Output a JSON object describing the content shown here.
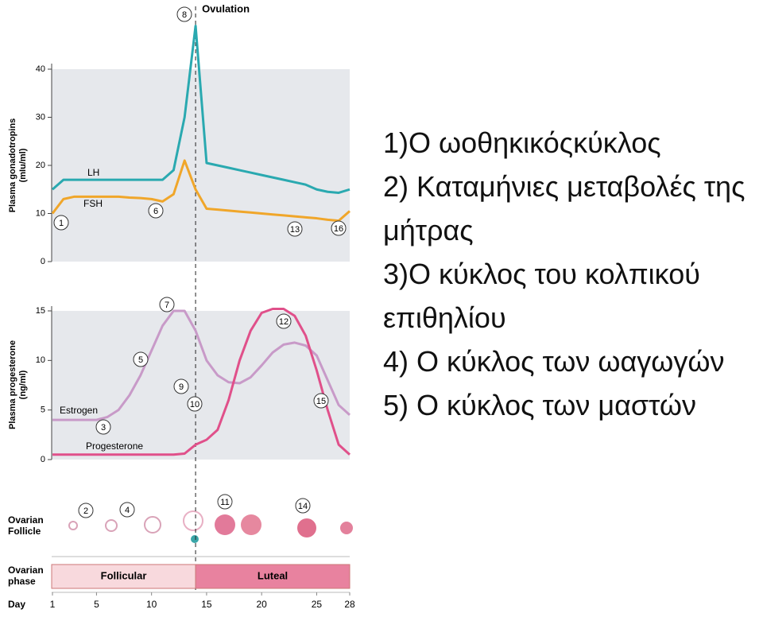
{
  "chart_data": [
    {
      "type": "line",
      "ylabel": [
        "Plasma gonadotropins",
        "(mIu/ml)"
      ],
      "ylim": [
        0,
        40
      ],
      "yticks": [
        0,
        10,
        20,
        30,
        40
      ],
      "x": [
        1,
        2,
        3,
        4,
        5,
        6,
        7,
        8,
        9,
        10,
        11,
        12,
        13,
        14,
        15,
        16,
        17,
        18,
        19,
        20,
        21,
        22,
        23,
        24,
        25,
        26,
        27,
        28
      ],
      "series": [
        {
          "name": "LH",
          "color": "#2aa9b0",
          "values": [
            15,
            17,
            17,
            17,
            17,
            17,
            17,
            17,
            17,
            17,
            17,
            19,
            30,
            49,
            20.5,
            20,
            19.5,
            19,
            18.5,
            18,
            17.5,
            17,
            16.5,
            16,
            15,
            14.5,
            14.3,
            15
          ]
        },
        {
          "name": "FSH",
          "color": "#f0a62a",
          "values": [
            10,
            13,
            13.5,
            13.5,
            13.5,
            13.5,
            13.5,
            13.3,
            13.2,
            13,
            12.5,
            14,
            21,
            15,
            11,
            10.8,
            10.6,
            10.4,
            10.2,
            10,
            9.8,
            9.6,
            9.4,
            9.2,
            9,
            8.7,
            8.5,
            10.5
          ]
        }
      ],
      "annotations": [
        "8",
        "1",
        "6",
        "13",
        "16"
      ]
    },
    {
      "type": "line",
      "ylabel": [
        "Plasma progesterone",
        "(ng/ml)"
      ],
      "ylim": [
        0,
        15
      ],
      "yticks": [
        0,
        5,
        10,
        15
      ],
      "x": [
        1,
        2,
        3,
        4,
        5,
        6,
        7,
        8,
        9,
        10,
        11,
        12,
        13,
        14,
        15,
        16,
        17,
        18,
        19,
        20,
        21,
        22,
        23,
        24,
        25,
        26,
        27,
        28
      ],
      "series": [
        {
          "name": "Estrogen",
          "color": "#c89ac8",
          "values": [
            4,
            4,
            4,
            4,
            4,
            4.3,
            5,
            6.5,
            8.5,
            11,
            13.5,
            15,
            15,
            13,
            10,
            8.5,
            7.8,
            7.7,
            8.3,
            9.5,
            10.8,
            11.6,
            11.8,
            11.5,
            10.5,
            8,
            5.5,
            4.5
          ]
        },
        {
          "name": "Progesterone",
          "color": "#e0508a",
          "values": [
            0.5,
            0.5,
            0.5,
            0.5,
            0.5,
            0.5,
            0.5,
            0.5,
            0.5,
            0.5,
            0.5,
            0.5,
            0.6,
            1.5,
            2,
            3,
            6,
            10,
            13,
            14.8,
            15.2,
            15.2,
            14.5,
            12.5,
            9,
            5,
            1.5,
            0.5
          ]
        }
      ],
      "annotations": [
        "7",
        "5",
        "3",
        "9",
        "10",
        "12",
        "15"
      ]
    }
  ],
  "ovulation": "Ovulation",
  "follicle": {
    "label": [
      "Ovarian",
      "Follicle"
    ],
    "annotations": [
      "2",
      "4",
      "11",
      "14"
    ]
  },
  "phase": {
    "label": [
      "Ovarian",
      "phase"
    ],
    "follicular": "Follicular",
    "luteal": "Luteal"
  },
  "day_axis": {
    "label": "Day",
    "xlim": [
      1,
      28
    ],
    "xticks": [
      1,
      5,
      10,
      15,
      20,
      25,
      28
    ]
  },
  "text": [
    "1)Ο ωοθηκικόςκύκλος",
    "2) Καταμήνιες μεταβολές της μήτρας",
    "3)Ο κύκλος του κολπικού επιθηλίου",
    "4) Ο κύκλος των ωαγωγών",
    "5) Ο κύκλος των μαστών"
  ]
}
